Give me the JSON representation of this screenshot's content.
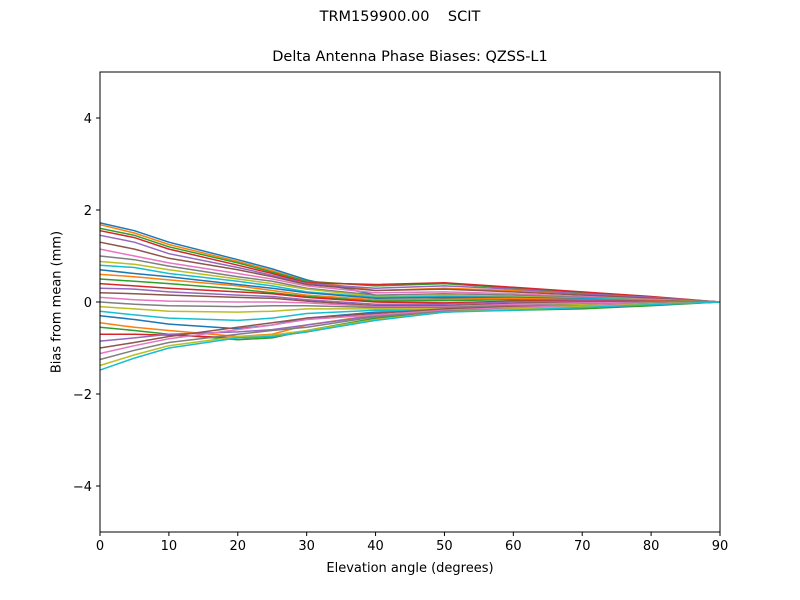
{
  "chart_data": {
    "type": "line",
    "suptitle": "TRM159900.00    SCIT",
    "title": "Delta Antenna Phase Biases: QZSS-L1",
    "xlabel": "Elevation angle (degrees)",
    "ylabel": "Bias from mean (mm)",
    "xlim": [
      0,
      90
    ],
    "ylim": [
      -5,
      5
    ],
    "xticks": [
      0,
      10,
      20,
      30,
      40,
      50,
      60,
      70,
      80,
      90
    ],
    "yticks": [
      -4,
      -2,
      0,
      2,
      4
    ],
    "ytick_labels": [
      "−4",
      "−2",
      "0",
      "2",
      "4"
    ],
    "grid": false,
    "colors": [
      "#1f77b4",
      "#ff7f0e",
      "#2ca02c",
      "#d62728",
      "#9467bd",
      "#8c564b",
      "#e377c2",
      "#7f7f7f",
      "#bcbd22",
      "#17becf"
    ],
    "x": [
      0,
      5,
      10,
      20,
      25,
      30,
      40,
      50,
      60,
      70,
      80,
      90
    ],
    "series": [
      {
        "values": [
          1.72,
          1.55,
          1.3,
          0.92,
          0.72,
          0.48,
          0.15,
          0.08,
          0.08,
          0.1,
          0.08,
          0
        ]
      },
      {
        "values": [
          1.68,
          1.5,
          1.25,
          0.88,
          0.68,
          0.45,
          0.25,
          0.3,
          0.25,
          0.18,
          0.1,
          0
        ]
      },
      {
        "values": [
          1.6,
          1.45,
          1.2,
          0.85,
          0.65,
          0.45,
          0.35,
          0.4,
          0.3,
          0.2,
          0.1,
          0
        ]
      },
      {
        "values": [
          1.55,
          1.4,
          1.15,
          0.8,
          0.62,
          0.42,
          0.38,
          0.42,
          0.32,
          0.22,
          0.12,
          0
        ]
      },
      {
        "values": [
          1.45,
          1.3,
          1.05,
          0.75,
          0.58,
          0.4,
          0.3,
          0.35,
          0.28,
          0.18,
          0.1,
          0
        ]
      },
      {
        "values": [
          1.3,
          1.15,
          0.95,
          0.7,
          0.55,
          0.38,
          0.25,
          0.28,
          0.22,
          0.15,
          0.08,
          0
        ]
      },
      {
        "values": [
          1.15,
          1.0,
          0.85,
          0.62,
          0.5,
          0.35,
          0.2,
          0.22,
          0.18,
          0.12,
          0.06,
          0
        ]
      },
      {
        "values": [
          1.0,
          0.92,
          0.78,
          0.55,
          0.45,
          0.3,
          0.15,
          0.18,
          0.15,
          0.1,
          0.05,
          0
        ]
      },
      {
        "values": [
          0.88,
          0.82,
          0.7,
          0.5,
          0.4,
          0.28,
          0.12,
          0.15,
          0.12,
          0.08,
          0.05,
          0
        ]
      },
      {
        "values": [
          0.8,
          0.75,
          0.62,
          0.45,
          0.35,
          0.22,
          0.1,
          0.12,
          0.1,
          0.08,
          0.04,
          0
        ]
      },
      {
        "values": [
          0.7,
          0.62,
          0.55,
          0.38,
          0.3,
          0.2,
          0.08,
          0.1,
          0.1,
          0.06,
          0.03,
          0
        ]
      },
      {
        "values": [
          0.6,
          0.55,
          0.48,
          0.35,
          0.25,
          0.15,
          0.05,
          0.06,
          0.08,
          0.05,
          0.03,
          0
        ]
      },
      {
        "values": [
          0.5,
          0.45,
          0.4,
          0.28,
          0.2,
          0.12,
          0.02,
          0.03,
          0.05,
          0.04,
          0.02,
          0
        ]
      },
      {
        "values": [
          0.4,
          0.35,
          0.3,
          0.22,
          0.18,
          0.1,
          0.0,
          -0.02,
          0.02,
          0.03,
          0.02,
          0
        ]
      },
      {
        "values": [
          0.3,
          0.28,
          0.22,
          0.15,
          0.12,
          0.05,
          -0.05,
          -0.05,
          0.0,
          0.02,
          0.01,
          0
        ]
      },
      {
        "values": [
          0.2,
          0.18,
          0.15,
          0.1,
          0.08,
          0.02,
          -0.08,
          -0.08,
          -0.03,
          0.0,
          0.0,
          0
        ]
      },
      {
        "values": [
          0.1,
          0.05,
          0.02,
          0.0,
          0.0,
          -0.02,
          -0.1,
          -0.1,
          -0.05,
          -0.02,
          -0.01,
          0
        ]
      },
      {
        "values": [
          0.0,
          -0.05,
          -0.08,
          -0.1,
          -0.08,
          -0.08,
          -0.12,
          -0.12,
          -0.08,
          -0.05,
          -0.02,
          0
        ]
      },
      {
        "values": [
          -0.1,
          -0.15,
          -0.2,
          -0.22,
          -0.2,
          -0.15,
          -0.15,
          -0.15,
          -0.1,
          -0.06,
          -0.03,
          0
        ]
      },
      {
        "values": [
          -0.2,
          -0.28,
          -0.35,
          -0.4,
          -0.35,
          -0.25,
          -0.18,
          -0.18,
          -0.12,
          -0.08,
          -0.04,
          0
        ]
      },
      {
        "values": [
          -0.3,
          -0.38,
          -0.48,
          -0.58,
          -0.5,
          -0.35,
          -0.22,
          -0.2,
          -0.15,
          -0.1,
          -0.05,
          0
        ]
      },
      {
        "values": [
          -0.45,
          -0.55,
          -0.62,
          -0.75,
          -0.7,
          -0.5,
          -0.28,
          -0.22,
          -0.15,
          -0.12,
          -0.06,
          0
        ]
      },
      {
        "values": [
          -0.55,
          -0.62,
          -0.7,
          -0.82,
          -0.78,
          -0.62,
          -0.35,
          -0.2,
          -0.18,
          -0.15,
          -0.08,
          0
        ]
      },
      {
        "values": [
          -0.7,
          -0.7,
          -0.72,
          -0.78,
          -0.75,
          -0.65,
          -0.38,
          -0.22,
          -0.15,
          -0.12,
          -0.06,
          0
        ]
      },
      {
        "values": [
          -0.85,
          -0.78,
          -0.7,
          -0.65,
          -0.6,
          -0.5,
          -0.3,
          -0.18,
          -0.12,
          -0.1,
          -0.05,
          0
        ]
      },
      {
        "values": [
          -1.0,
          -0.88,
          -0.75,
          -0.55,
          -0.45,
          -0.35,
          -0.25,
          -0.15,
          -0.1,
          -0.08,
          -0.04,
          0
        ]
      },
      {
        "values": [
          -1.12,
          -0.95,
          -0.8,
          -0.6,
          -0.5,
          -0.38,
          -0.28,
          -0.18,
          -0.12,
          -0.08,
          -0.04,
          0
        ]
      },
      {
        "values": [
          -1.25,
          -1.05,
          -0.88,
          -0.7,
          -0.62,
          -0.55,
          -0.32,
          -0.2,
          -0.15,
          -0.1,
          -0.05,
          0
        ]
      },
      {
        "values": [
          -1.38,
          -1.15,
          -0.95,
          -0.75,
          -0.72,
          -0.62,
          -0.38,
          -0.22,
          -0.15,
          -0.1,
          -0.05,
          0
        ]
      },
      {
        "values": [
          -1.48,
          -1.22,
          -1.0,
          -0.78,
          -0.75,
          -0.65,
          -0.4,
          -0.22,
          -0.18,
          -0.12,
          -0.06,
          0
        ]
      }
    ]
  }
}
